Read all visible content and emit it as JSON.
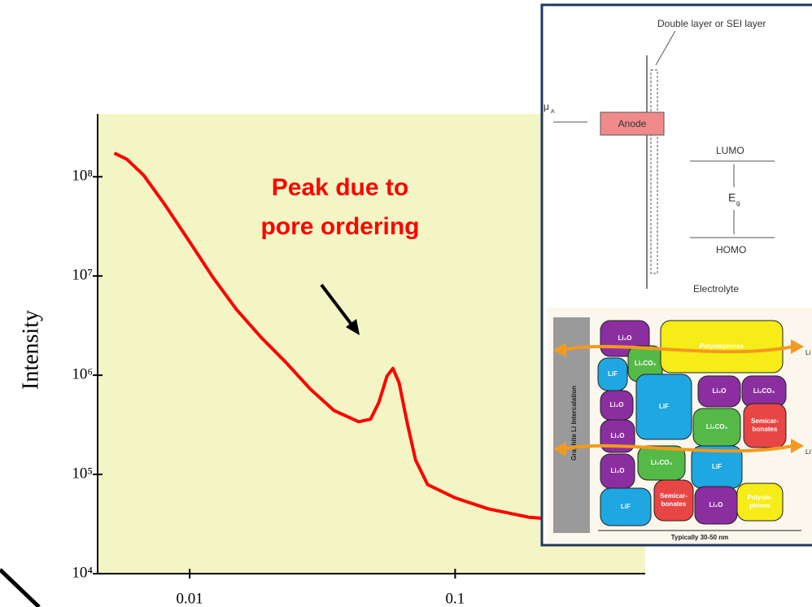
{
  "chart_data": {
    "type": "line",
    "xscale": "log",
    "yscale": "log",
    "ylabel": "Intensity",
    "annotation": [
      "Peak due to",
      "pore ordering"
    ],
    "x": [
      0.0052,
      0.0058,
      0.0067,
      0.008,
      0.0099,
      0.0122,
      0.015,
      0.0186,
      0.023,
      0.0284,
      0.035,
      0.0433,
      0.048,
      0.0516,
      0.0554,
      0.0583,
      0.0615,
      0.066,
      0.0709,
      0.0787,
      0.1,
      0.133,
      0.19,
      0.25
    ],
    "values": [
      173000000,
      150000000,
      104000000,
      54000000,
      23000000,
      9800000,
      4600000,
      2400000,
      1350000,
      730000,
      440000,
      340000,
      360000,
      530000,
      980000,
      1170000,
      840000,
      330000,
      140000,
      79000,
      58000,
      45000,
      37000,
      35000
    ],
    "color": "#ff0000",
    "xlim": [
      0.0045,
      0.52
    ],
    "ylim": [
      10000,
      430000000
    ],
    "xticks": [
      0.01,
      0.1
    ],
    "yticks": [
      {
        "value": 10000,
        "label": "10⁴"
      },
      {
        "value": 100000,
        "label": "10⁵"
      },
      {
        "value": 1000000,
        "label": "10⁶"
      },
      {
        "value": 10000000,
        "label": "10⁷"
      },
      {
        "value": 100000000,
        "label": "10⁸"
      }
    ],
    "background": "#f4f5c4"
  },
  "inset": {
    "layer_label": "Double layer or SEI layer",
    "mu": "μ",
    "mu_sub": "A",
    "anode": "Anode",
    "lumo": "LUMO",
    "gap": "E",
    "gap_sub": "g",
    "homo": "HOMO",
    "electrolyte": "Electrolyte",
    "graphite": "Graphite Li Intercalation",
    "scale": "Typically 30-50 nm",
    "ions": [
      "Li",
      "Li⁺"
    ],
    "blobs": [
      [
        "Li₂O"
      ],
      [
        "LiF"
      ],
      [
        "Li₂CO₃"
      ],
      [
        "Polyolephines"
      ],
      [
        "Li₂O"
      ],
      [
        "LiF"
      ],
      [
        "Li₂O"
      ],
      [
        "Li₂CO₃"
      ],
      [
        "Li₂O"
      ],
      [
        "Li₂CO₃"
      ],
      [
        "Semicar-",
        "bonates"
      ],
      [
        "LiF"
      ],
      [
        "Li₂O"
      ],
      [
        "Li₂CO₃"
      ],
      [
        "LiF"
      ],
      [
        "Semicar-",
        "bonates"
      ],
      [
        "Li₂O"
      ],
      [
        "Polyole-",
        "phines"
      ]
    ]
  }
}
